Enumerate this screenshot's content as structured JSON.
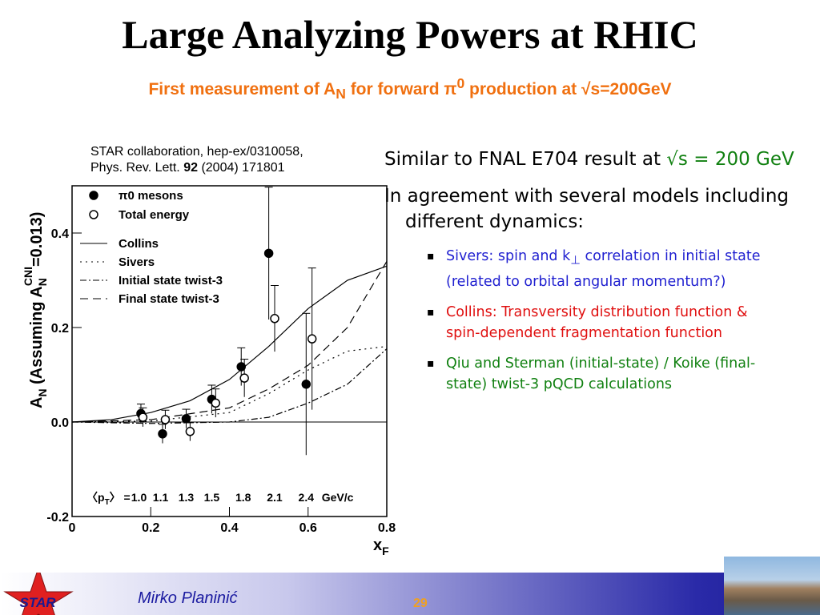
{
  "title": "Large Analyzing Powers at RHIC",
  "subtitle": [
    "First measurement of A",
    "N",
    " for forward π",
    "0",
    " production at √s=200GeV"
  ],
  "citation": [
    "STAR collaboration, hep-ex/0310058,",
    "Phys. Rev. Lett. ",
    "92",
    " (2004) 171801"
  ],
  "bullets": [
    {
      "text": [
        "Similar to FNAL E704 result at ",
        "√s = 200",
        " GeV"
      ]
    },
    {
      "text": [
        "In agreement with several models including different dynamics:"
      ],
      "sub": [
        {
          "color": "#1f1fd0",
          "text": [
            "Sivers: spin and k",
            "⊥",
            " correlation in initial state (related to orbital angular momentum?)"
          ]
        },
        {
          "color": "#e01010",
          "text": [
            "Collins: Transversity distribution function & spin-dependent fragmentation function"
          ]
        },
        {
          "color": "#108010",
          "text": [
            "Qiu and Sterman (initial-state) / Koike (final-state) twist-3 pQCD calculations"
          ]
        }
      ]
    }
  ],
  "footer": {
    "logo": "STAR",
    "author": "Mirko Planinić",
    "page": "29"
  },
  "chart_data": {
    "type": "scatter",
    "xlabel": [
      "x",
      "F"
    ],
    "ylabel": [
      "A",
      "N",
      " (Assuming A",
      "N",
      "CNI",
      "=0.013)"
    ],
    "xlim": [
      0,
      0.8
    ],
    "ylim": [
      -0.2,
      0.5
    ],
    "xticks": [
      0,
      0.2,
      0.4,
      0.6,
      0.8
    ],
    "yticks": [
      -0.2,
      {
        "value": 0,
        "label": "0.0"
      },
      0.2,
      0.4
    ],
    "points": [
      {
        "name": "π0 mesons",
        "marker": "filled",
        "color": "#000000",
        "x": [
          0.175,
          0.23,
          0.29,
          0.355,
          0.43,
          0.5,
          0.595
        ],
        "values": [
          0.018,
          -0.025,
          0.007,
          0.048,
          0.117,
          0.357,
          0.08
        ],
        "errors": [
          0.02,
          0.02,
          0.02,
          0.03,
          0.04,
          0.14,
          0.15
        ]
      },
      {
        "name": "Total energy",
        "marker": "open",
        "color": "#000000",
        "x": [
          0.18,
          0.237,
          0.3,
          0.365,
          0.438,
          0.515,
          0.61
        ],
        "values": [
          0.01,
          0.005,
          -0.02,
          0.04,
          0.093,
          0.219,
          0.176
        ],
        "errors": [
          0.02,
          0.02,
          0.02,
          0.03,
          0.04,
          0.07,
          0.15
        ]
      }
    ],
    "curves": [
      {
        "name": "Collins",
        "dash": "none",
        "x": [
          0,
          0.1,
          0.2,
          0.3,
          0.4,
          0.5,
          0.6,
          0.7,
          0.8
        ],
        "values": [
          0,
          0.005,
          0.02,
          0.045,
          0.09,
          0.16,
          0.24,
          0.3,
          0.33
        ]
      },
      {
        "name": "Sivers",
        "dash": "2 5",
        "x": [
          0,
          0.2,
          0.4,
          0.5,
          0.6,
          0.7,
          0.8
        ],
        "values": [
          0,
          0.002,
          0.02,
          0.06,
          0.11,
          0.15,
          0.16
        ]
      },
      {
        "name": "Initial state twist-3",
        "dash": "8 3 2 3",
        "x": [
          0,
          0.2,
          0.4,
          0.5,
          0.6,
          0.7,
          0.8
        ],
        "values": [
          0,
          -0.003,
          0,
          0.01,
          0.04,
          0.08,
          0.155
        ]
      },
      {
        "name": "Final state twist-3",
        "dash": "10 6",
        "x": [
          0,
          0.2,
          0.4,
          0.5,
          0.6,
          0.7,
          0.8
        ],
        "values": [
          0,
          0.005,
          0.03,
          0.07,
          0.12,
          0.2,
          0.34
        ]
      }
    ],
    "pt_label": [
      "〈p",
      "T",
      "〉 ="
    ],
    "pt_values": [
      "1.0",
      "1.1",
      "1.3",
      "1.5",
      "1.8",
      "2.1",
      "2.4",
      "GeV/c"
    ]
  }
}
